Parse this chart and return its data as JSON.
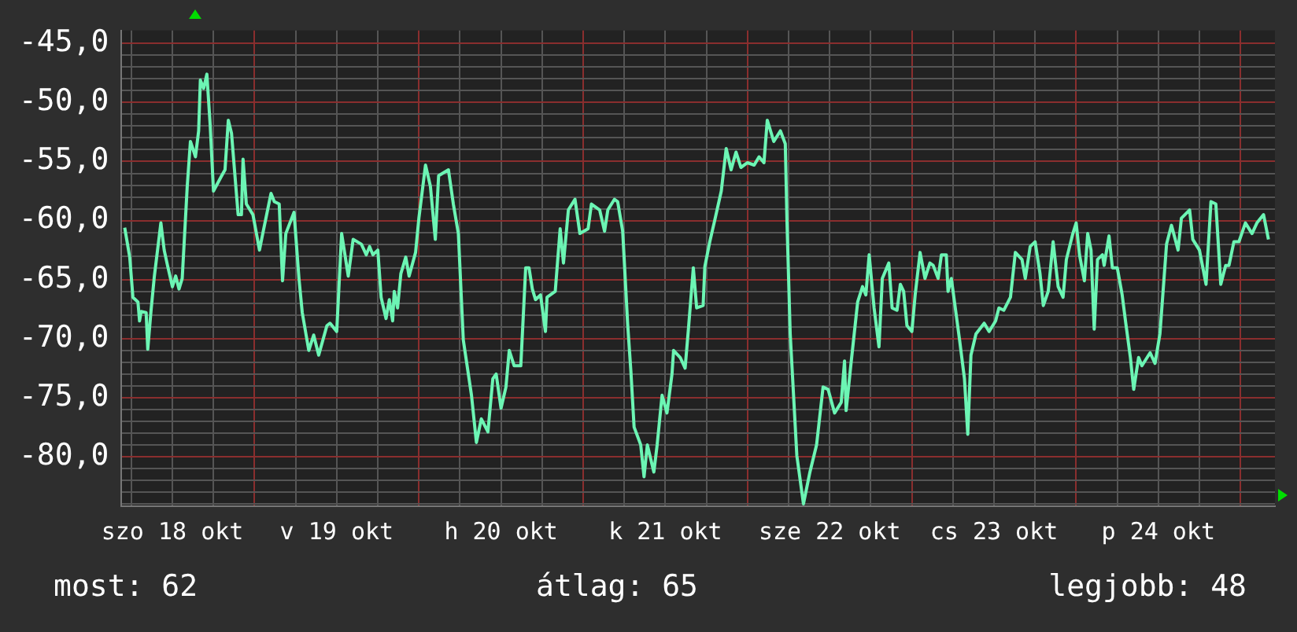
{
  "chart_data": {
    "type": "line",
    "xlim": [
      "--10-18T04:34",
      "--10-25T05:02"
    ],
    "ylim": [
      -84.2,
      -43.9
    ],
    "xticks": [
      {
        "value": "--10-18T06:00",
        "label": null
      },
      {
        "value": "--10-18T12:00",
        "label": "szo 18 okt"
      },
      {
        "value": "--10-18T18:00",
        "label": null
      },
      {
        "value": "--10-19T00:00",
        "label": null
      },
      {
        "value": "--10-19T06:00",
        "label": null
      },
      {
        "value": "--10-19T12:00",
        "label": "v 19 okt"
      },
      {
        "value": "--10-19T18:00",
        "label": null
      },
      {
        "value": "--10-20T00:00",
        "label": null
      },
      {
        "value": "--10-20T06:00",
        "label": null
      },
      {
        "value": "--10-20T12:00",
        "label": "h 20 okt"
      },
      {
        "value": "--10-20T18:00",
        "label": null
      },
      {
        "value": "--10-21T00:00",
        "label": null
      },
      {
        "value": "--10-21T06:00",
        "label": null
      },
      {
        "value": "--10-21T12:00",
        "label": "k 21 okt"
      },
      {
        "value": "--10-21T18:00",
        "label": null
      },
      {
        "value": "--10-22T00:00",
        "label": null
      },
      {
        "value": "--10-22T06:00",
        "label": null
      },
      {
        "value": "--10-22T12:00",
        "label": "sze 22 okt"
      },
      {
        "value": "--10-22T18:00",
        "label": null
      },
      {
        "value": "--10-23T00:00",
        "label": null
      },
      {
        "value": "--10-23T06:00",
        "label": null
      },
      {
        "value": "--10-23T12:00",
        "label": "cs 23 okt"
      },
      {
        "value": "--10-23T18:00",
        "label": null
      },
      {
        "value": "--10-24T00:00",
        "label": null
      },
      {
        "value": "--10-24T06:00",
        "label": null
      },
      {
        "value": "--10-24T12:00",
        "label": "p 24 okt"
      },
      {
        "value": "--10-24T18:00",
        "label": null
      },
      {
        "value": "--10-25T00:00",
        "label": null
      }
    ],
    "yticks": [
      {
        "value": -45,
        "label": "-45,0"
      },
      {
        "value": -46,
        "label": null
      },
      {
        "value": -47,
        "label": null
      },
      {
        "value": -48,
        "label": null
      },
      {
        "value": -49,
        "label": null
      },
      {
        "value": -50,
        "label": "-50,0"
      },
      {
        "value": -51,
        "label": null
      },
      {
        "value": -52,
        "label": null
      },
      {
        "value": -53,
        "label": null
      },
      {
        "value": -54,
        "label": null
      },
      {
        "value": -55,
        "label": "-55,0"
      },
      {
        "value": -56,
        "label": null
      },
      {
        "value": -57,
        "label": null
      },
      {
        "value": -58,
        "label": null
      },
      {
        "value": -59,
        "label": null
      },
      {
        "value": -60,
        "label": "-60,0"
      },
      {
        "value": -61,
        "label": null
      },
      {
        "value": -62,
        "label": null
      },
      {
        "value": -63,
        "label": null
      },
      {
        "value": -64,
        "label": null
      },
      {
        "value": -65,
        "label": "-65,0"
      },
      {
        "value": -66,
        "label": null
      },
      {
        "value": -67,
        "label": null
      },
      {
        "value": -68,
        "label": null
      },
      {
        "value": -69,
        "label": null
      },
      {
        "value": -70,
        "label": "-70,0"
      },
      {
        "value": -71,
        "label": null
      },
      {
        "value": -72,
        "label": null
      },
      {
        "value": -73,
        "label": null
      },
      {
        "value": -74,
        "label": null
      },
      {
        "value": -75,
        "label": "-75,0"
      },
      {
        "value": -76,
        "label": null
      },
      {
        "value": -77,
        "label": null
      },
      {
        "value": -78,
        "label": null
      },
      {
        "value": -79,
        "label": null
      },
      {
        "value": -80,
        "label": "-80,0"
      },
      {
        "value": -81,
        "label": null
      },
      {
        "value": -82,
        "label": null
      },
      {
        "value": -83,
        "label": null
      },
      {
        "value": -84,
        "label": null
      }
    ],
    "grid": true,
    "legend": false,
    "marker": "none",
    "line_style": "solid",
    "annotations": [
      "most: 62",
      "átlag: 65",
      "legjobb: 48"
    ],
    "series": [
      {
        "color": "#6cf5b4",
        "x": [
          "--10-18T05:02",
          "--10-18T05:46",
          "--10-18T06:14",
          "--10-18T06:58",
          "--10-18T07:12",
          "--10-18T07:26",
          "--10-18T08:10",
          "--10-18T08:24",
          "--10-18T08:53",
          "--10-18T09:22",
          "--10-18T10:19",
          "--10-18T10:48",
          "--10-18T11:17",
          "--10-18T12:00",
          "--10-18T12:29",
          "--10-18T12:58",
          "--10-18T13:26",
          "--10-18T14:10",
          "--10-18T14:38",
          "--10-18T15:22",
          "--10-18T15:50",
          "--10-18T16:05",
          "--10-18T16:34",
          "--10-18T17:02",
          "--10-18T17:31",
          "--10-18T18:00",
          "--10-18T19:12",
          "--10-18T19:41",
          "--10-18T20:10",
          "--10-18T20:38",
          "--10-18T21:36",
          "--10-18T22:05",
          "--10-18T22:19",
          "--10-18T22:48",
          "--10-18T23:46",
          "--10-19T00:43",
          "--10-19T01:12",
          "--10-19T02:24",
          "--10-19T02:53",
          "--10-19T03:36",
          "--10-19T04:05",
          "--10-19T04:34",
          "--10-19T05:46",
          "--10-19T06:29",
          "--10-19T06:58",
          "--10-19T07:55",
          "--10-19T08:38",
          "--10-19T09:22",
          "--10-19T10:34",
          "--10-19T11:02",
          "--10-19T12:00",
          "--10-19T12:43",
          "--10-19T13:41",
          "--10-19T14:24",
          "--10-19T15:36",
          "--10-19T16:19",
          "--10-19T16:48",
          "--10-19T17:17",
          "--10-19T18:00",
          "--10-19T18:29",
          "--10-19T19:12",
          "--10-19T19:41",
          "--10-19T20:10",
          "--10-19T20:24",
          "--10-19T20:53",
          "--10-19T21:22",
          "--10-19T22:05",
          "--10-19T22:34",
          "--10-19T23:31",
          "--10-20T00:00",
          "--10-20T00:58",
          "--10-20T01:41",
          "--10-20T02:24",
          "--10-20T02:53",
          "--10-20T04:19",
          "--10-20T05:02",
          "--10-20T05:46",
          "--10-20T06:29",
          "--10-20T07:41",
          "--10-20T08:24",
          "--10-20T09:07",
          "--10-20T10:05",
          "--10-20T10:48",
          "--10-20T11:17",
          "--10-20T12:00",
          "--10-20T12:43",
          "--10-20T13:12",
          "--10-20T13:55",
          "--10-20T14:53",
          "--10-20T15:36",
          "--10-20T16:05",
          "--10-20T16:34",
          "--10-20T17:02",
          "--10-20T17:46",
          "--10-20T18:29",
          "--10-20T18:43",
          "--10-20T19:55",
          "--10-20T20:38",
          "--10-20T21:07",
          "--10-20T21:50",
          "--10-20T22:48",
          "--10-20T23:31",
          "--10-21T00:43",
          "--10-21T01:12",
          "--10-21T02:24",
          "--10-21T03:07",
          "--10-21T03:36",
          "--10-21T04:34",
          "--10-21T05:02",
          "--10-21T05:46",
          "--10-21T06:29",
          "--10-21T06:58",
          "--10-21T07:26",
          "--10-21T08:24",
          "--10-21T08:53",
          "--10-21T09:22",
          "--10-21T10:19",
          "--10-21T10:48",
          "--10-21T11:31",
          "--10-21T12:14",
          "--10-21T12:58",
          "--10-21T13:12",
          "--10-21T14:10",
          "--10-21T14:53",
          "--10-21T15:22",
          "--10-21T16:05",
          "--10-21T16:34",
          "--10-21T17:31",
          "--10-21T17:46",
          "--10-21T18:29",
          "--10-21T19:12",
          "--10-21T20:10",
          "--10-21T20:53",
          "--10-21T21:36",
          "--10-21T22:19",
          "--10-21T23:02",
          "--10-22T00:00",
          "--10-22T00:58",
          "--10-22T01:41",
          "--10-22T02:24",
          "--10-22T02:53",
          "--10-22T03:50",
          "--10-22T04:48",
          "--10-22T05:31",
          "--10-22T05:46",
          "--10-22T06:14",
          "--10-22T07:12",
          "--10-22T08:10",
          "--10-22T09:07",
          "--10-22T10:05",
          "--10-22T11:02",
          "--10-22T11:46",
          "--10-22T12:43",
          "--10-22T13:41",
          "--10-22T14:10",
          "--10-22T14:24",
          "--10-22T15:07",
          "--10-22T16:05",
          "--10-22T16:48",
          "--10-22T17:17",
          "--10-22T17:46",
          "--10-22T18:29",
          "--10-22T19:12",
          "--10-22T19:41",
          "--10-22T20:38",
          "--10-22T21:07",
          "--10-22T21:50",
          "--10-22T22:19",
          "--10-22T22:48",
          "--10-22T23:17",
          "--10-23T00:00",
          "--10-23T00:29",
          "--10-23T01:12",
          "--10-23T01:55",
          "--10-23T02:38",
          "--10-23T03:07",
          "--10-23T03:50",
          "--10-23T04:19",
          "--10-23T05:02",
          "--10-23T05:17",
          "--10-23T05:46",
          "--10-23T06:58",
          "--10-23T07:41",
          "--10-23T08:10",
          "--10-23T08:38",
          "--10-23T09:22",
          "--10-23T10:34",
          "--10-23T11:17",
          "--10-23T12:14",
          "--10-23T12:43",
          "--10-23T13:26",
          "--10-23T14:24",
          "--10-23T15:07",
          "--10-23T16:05",
          "--10-23T16:34",
          "--10-23T17:17",
          "--10-23T18:00",
          "--10-23T18:43",
          "--10-23T19:12",
          "--10-23T19:55",
          "--10-23T20:38",
          "--10-23T21:22",
          "--10-23T22:05",
          "--10-23T22:34",
          "--10-23T23:31",
          "--10-24T00:00",
          "--10-24T00:29",
          "--10-24T01:12",
          "--10-24T01:41",
          "--10-24T02:10",
          "--10-24T02:38",
          "--10-24T03:07",
          "--10-24T03:50",
          "--10-24T04:05",
          "--10-24T04:48",
          "--10-24T05:17",
          "--10-24T06:00",
          "--10-24T06:43",
          "--10-24T07:12",
          "--10-24T07:55",
          "--10-24T08:24",
          "--10-24T09:07",
          "--10-24T09:36",
          "--10-24T10:48",
          "--10-24T11:31",
          "--10-24T12:14",
          "--10-24T13:12",
          "--10-24T13:55",
          "--10-24T14:53",
          "--10-24T15:22",
          "--10-24T16:34",
          "--10-24T17:02",
          "--10-24T18:00",
          "--10-24T18:58",
          "--10-24T19:41",
          "--10-24T20:24",
          "--10-24T21:07",
          "--10-24T21:50",
          "--10-24T22:19",
          "--10-24T23:02",
          "--10-24T23:46",
          "--10-25T00:43",
          "--10-25T01:41",
          "--10-25T02:24",
          "--10-25T03:22",
          "--10-25T04:05"
        ],
        "values": [
          -60.6,
          -63.1,
          -66.5,
          -66.9,
          -68.5,
          -67.7,
          -67.8,
          -70.9,
          -67.6,
          -64.7,
          -60.2,
          -62.5,
          -63.8,
          -65.6,
          -64.7,
          -65.8,
          -64.9,
          -57.1,
          -53.3,
          -54.6,
          -52.4,
          -48.1,
          -48.8,
          -47.6,
          -51.9,
          -57.5,
          -56.2,
          -55.7,
          -51.5,
          -52.6,
          -59.5,
          -59.5,
          -54.8,
          -58.6,
          -59.5,
          -62.5,
          -61.1,
          -57.7,
          -58.4,
          -58.6,
          -65.1,
          -61.1,
          -59.3,
          -64.9,
          -67.8,
          -71.0,
          -69.7,
          -71.4,
          -68.9,
          -68.7,
          -69.4,
          -61.1,
          -64.7,
          -61.6,
          -62.0,
          -62.9,
          -62.2,
          -62.9,
          -62.5,
          -66.5,
          -68.3,
          -66.7,
          -68.5,
          -66.0,
          -67.4,
          -64.5,
          -63.1,
          -64.7,
          -62.7,
          -59.8,
          -55.3,
          -57.1,
          -61.6,
          -56.2,
          -55.7,
          -58.6,
          -61.1,
          -70.1,
          -74.8,
          -78.8,
          -76.8,
          -77.9,
          -73.4,
          -73.0,
          -75.9,
          -74.1,
          -71.0,
          -72.3,
          -72.3,
          -64.0,
          -64.0,
          -65.8,
          -66.7,
          -66.3,
          -69.4,
          -66.5,
          -66.0,
          -60.7,
          -63.6,
          -59.1,
          -58.2,
          -61.1,
          -60.7,
          -58.6,
          -59.1,
          -60.9,
          -59.1,
          -58.2,
          -58.4,
          -60.9,
          -68.7,
          -72.8,
          -77.5,
          -79.0,
          -81.7,
          -79.0,
          -81.3,
          -79.0,
          -74.8,
          -76.3,
          -73.0,
          -71.0,
          -71.6,
          -72.5,
          -69.2,
          -64.0,
          -67.4,
          -67.2,
          -63.9,
          -61.8,
          -60.0,
          -57.5,
          -53.9,
          -55.7,
          -54.2,
          -55.5,
          -55.1,
          -55.3,
          -54.6,
          -55.1,
          -51.5,
          -53.3,
          -52.4,
          -53.5,
          -60.2,
          -69.6,
          -79.9,
          -84.0,
          -81.3,
          -79.0,
          -74.1,
          -74.3,
          -76.3,
          -75.4,
          -71.9,
          -76.1,
          -72.1,
          -66.9,
          -65.6,
          -66.3,
          -62.9,
          -67.4,
          -70.7,
          -64.9,
          -63.6,
          -67.4,
          -67.6,
          -65.4,
          -66.0,
          -68.9,
          -69.4,
          -66.3,
          -62.7,
          -64.9,
          -63.6,
          -63.8,
          -64.9,
          -62.9,
          -62.9,
          -66.0,
          -64.9,
          -70.1,
          -73.4,
          -78.1,
          -71.4,
          -69.6,
          -68.7,
          -69.4,
          -68.5,
          -67.4,
          -67.6,
          -66.5,
          -62.7,
          -63.3,
          -64.9,
          -62.2,
          -61.8,
          -64.5,
          -67.2,
          -66.0,
          -61.8,
          -65.6,
          -66.5,
          -63.3,
          -61.1,
          -60.2,
          -62.9,
          -65.1,
          -61.1,
          -62.5,
          -69.2,
          -63.3,
          -62.9,
          -63.8,
          -61.3,
          -64.0,
          -64.0,
          -66.3,
          -68.5,
          -71.6,
          -74.3,
          -71.6,
          -72.3,
          -71.2,
          -72.1,
          -69.6,
          -62.0,
          -60.4,
          -62.5,
          -59.8,
          -59.1,
          -61.6,
          -62.5,
          -65.4,
          -58.4,
          -58.6,
          -65.4,
          -63.8,
          -63.8,
          -61.8,
          -61.8,
          -60.2,
          -61.1,
          -60.2,
          -59.5,
          -61.6
        ]
      }
    ]
  }
}
